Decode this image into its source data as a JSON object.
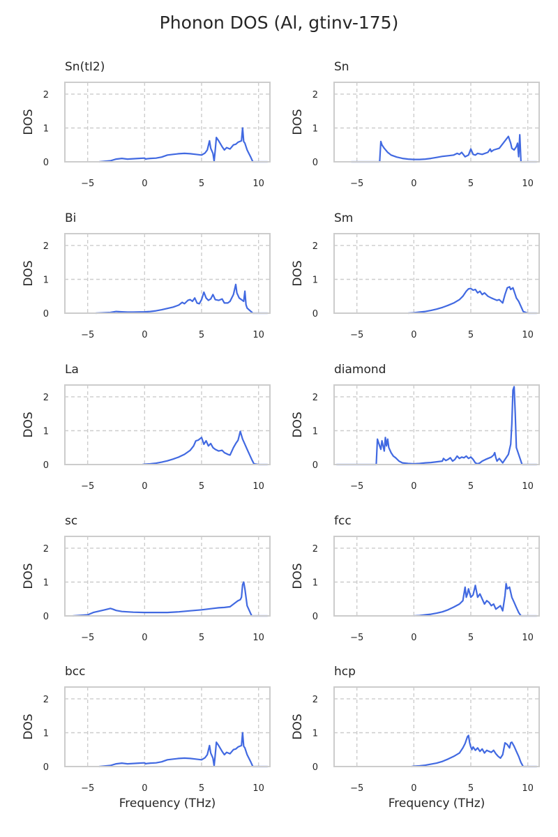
{
  "title": "Phonon DOS (Al, gtinv-175)",
  "series_color": "#4169e1",
  "chart_data": {
    "type": "line",
    "grid": true,
    "xlim": [
      -7,
      11
    ],
    "ylim": [
      0,
      2.35
    ],
    "xticks": [
      -5,
      0,
      5,
      10
    ],
    "yticks": [
      0,
      1,
      2
    ],
    "xlabel": "Frequency (THz)",
    "ylabel": "DOS",
    "panels": [
      {
        "title": "Sn(tI2)",
        "x": [
          -4.0,
          -3.0,
          -2.5,
          -2.0,
          -1.5,
          -1.0,
          -0.5,
          0.0,
          0.1,
          0.2,
          0.5,
          1.0,
          1.5,
          2.0,
          2.5,
          3.0,
          3.5,
          4.0,
          4.5,
          5.0,
          5.3,
          5.5,
          5.7,
          5.8,
          6.0,
          6.1,
          6.2,
          6.3,
          6.5,
          6.8,
          7.0,
          7.2,
          7.5,
          7.8,
          8.0,
          8.2,
          8.5,
          8.6,
          8.7,
          8.8,
          9.0,
          9.3,
          9.5,
          10.0,
          10.8
        ],
        "y": [
          0.0,
          0.03,
          0.08,
          0.1,
          0.08,
          0.09,
          0.1,
          0.11,
          0.08,
          0.09,
          0.1,
          0.11,
          0.14,
          0.2,
          0.22,
          0.24,
          0.25,
          0.24,
          0.22,
          0.2,
          0.26,
          0.35,
          0.62,
          0.4,
          0.25,
          0.02,
          0.35,
          0.72,
          0.62,
          0.45,
          0.35,
          0.42,
          0.38,
          0.5,
          0.52,
          0.58,
          0.62,
          1.0,
          0.6,
          0.55,
          0.35,
          0.15,
          0.0,
          0.0,
          0.0
        ]
      },
      {
        "title": "Sn",
        "x": [
          -5.5,
          -3.0,
          -2.9,
          -2.8,
          -2.6,
          -2.3,
          -2.0,
          -1.5,
          -1.0,
          -0.5,
          0.0,
          0.5,
          1.0,
          1.5,
          2.0,
          2.5,
          3.0,
          3.5,
          3.8,
          4.0,
          4.2,
          4.5,
          4.8,
          5.0,
          5.2,
          5.4,
          5.6,
          6.0,
          6.5,
          6.7,
          6.8,
          7.0,
          7.5,
          8.0,
          8.3,
          8.5,
          8.6,
          8.8,
          9.0,
          9.1,
          9.2,
          9.3,
          9.4,
          10.0,
          10.8
        ],
        "y": [
          0.0,
          0.0,
          0.6,
          0.5,
          0.4,
          0.28,
          0.2,
          0.14,
          0.1,
          0.08,
          0.07,
          0.07,
          0.08,
          0.1,
          0.13,
          0.16,
          0.18,
          0.2,
          0.25,
          0.22,
          0.28,
          0.15,
          0.2,
          0.38,
          0.22,
          0.2,
          0.25,
          0.22,
          0.28,
          0.38,
          0.3,
          0.35,
          0.4,
          0.62,
          0.75,
          0.55,
          0.4,
          0.35,
          0.45,
          0.55,
          0.15,
          0.8,
          0.0,
          0.0,
          0.0
        ]
      },
      {
        "title": "Bi",
        "x": [
          -4.3,
          -3.0,
          -2.5,
          -2.0,
          -1.5,
          -1.0,
          0.0,
          0.5,
          1.0,
          1.5,
          2.0,
          2.5,
          3.0,
          3.3,
          3.5,
          3.8,
          4.0,
          4.2,
          4.4,
          4.6,
          4.8,
          5.0,
          5.2,
          5.4,
          5.6,
          5.8,
          6.0,
          6.2,
          6.5,
          6.8,
          7.0,
          7.3,
          7.5,
          7.8,
          8.0,
          8.1,
          8.3,
          8.5,
          8.7,
          8.8,
          8.9,
          9.0,
          9.5,
          10.0,
          10.8
        ],
        "y": [
          0.0,
          0.02,
          0.05,
          0.04,
          0.03,
          0.03,
          0.04,
          0.05,
          0.07,
          0.1,
          0.14,
          0.18,
          0.24,
          0.32,
          0.28,
          0.38,
          0.4,
          0.35,
          0.45,
          0.3,
          0.28,
          0.4,
          0.62,
          0.45,
          0.38,
          0.42,
          0.55,
          0.4,
          0.38,
          0.42,
          0.3,
          0.3,
          0.35,
          0.55,
          0.85,
          0.6,
          0.45,
          0.4,
          0.35,
          0.65,
          0.25,
          0.15,
          0.0,
          0.0,
          0.0
        ]
      },
      {
        "title": "Sm",
        "x": [
          -0.5,
          0.0,
          0.5,
          1.0,
          1.5,
          2.0,
          2.5,
          3.0,
          3.5,
          4.0,
          4.3,
          4.6,
          4.8,
          5.0,
          5.2,
          5.4,
          5.6,
          5.8,
          6.0,
          6.2,
          6.5,
          6.8,
          7.0,
          7.3,
          7.5,
          7.8,
          8.0,
          8.2,
          8.4,
          8.5,
          8.7,
          8.9,
          9.0,
          9.2,
          9.4,
          9.6,
          10.0,
          10.8
        ],
        "y": [
          0.0,
          0.01,
          0.03,
          0.05,
          0.08,
          0.12,
          0.17,
          0.23,
          0.3,
          0.4,
          0.5,
          0.65,
          0.72,
          0.73,
          0.68,
          0.7,
          0.6,
          0.65,
          0.55,
          0.6,
          0.5,
          0.45,
          0.42,
          0.38,
          0.4,
          0.3,
          0.55,
          0.75,
          0.78,
          0.7,
          0.75,
          0.55,
          0.45,
          0.35,
          0.2,
          0.05,
          0.0,
          0.0
        ]
      },
      {
        "title": "La",
        "x": [
          -0.2,
          0.0,
          0.5,
          1.0,
          1.5,
          2.0,
          2.5,
          3.0,
          3.5,
          4.0,
          4.3,
          4.5,
          4.7,
          5.0,
          5.2,
          5.4,
          5.6,
          5.8,
          6.0,
          6.2,
          6.5,
          6.8,
          7.0,
          7.3,
          7.5,
          7.8,
          8.0,
          8.2,
          8.4,
          8.6,
          8.8,
          9.0,
          9.2,
          9.4,
          9.6,
          10.0,
          10.8
        ],
        "y": [
          0.0,
          0.01,
          0.02,
          0.04,
          0.07,
          0.11,
          0.16,
          0.22,
          0.3,
          0.42,
          0.55,
          0.7,
          0.72,
          0.8,
          0.6,
          0.7,
          0.55,
          0.62,
          0.5,
          0.45,
          0.4,
          0.42,
          0.35,
          0.3,
          0.28,
          0.5,
          0.62,
          0.72,
          0.98,
          0.75,
          0.6,
          0.45,
          0.3,
          0.15,
          0.02,
          0.0,
          0.0
        ]
      },
      {
        "title": "diamond",
        "x": [
          -6.8,
          -3.3,
          -3.2,
          -3.0,
          -2.9,
          -2.8,
          -2.6,
          -2.5,
          -2.4,
          -2.3,
          -2.2,
          -2.0,
          -1.8,
          -1.6,
          -1.3,
          -1.0,
          -0.5,
          0.0,
          0.5,
          1.0,
          1.5,
          2.0,
          2.5,
          2.6,
          2.8,
          3.0,
          3.2,
          3.4,
          3.6,
          3.8,
          4.0,
          4.2,
          4.4,
          4.6,
          4.8,
          5.0,
          5.2,
          5.4,
          5.6,
          5.8,
          6.0,
          6.3,
          6.5,
          6.8,
          7.0,
          7.1,
          7.2,
          7.3,
          7.5,
          7.8,
          8.0,
          8.3,
          8.5,
          8.6,
          8.7,
          8.8,
          8.9,
          9.0,
          9.5,
          10.0,
          10.8
        ],
        "y": [
          0.0,
          0.0,
          0.75,
          0.55,
          0.45,
          0.7,
          0.4,
          0.8,
          0.55,
          0.75,
          0.5,
          0.35,
          0.25,
          0.2,
          0.1,
          0.05,
          0.03,
          0.02,
          0.03,
          0.05,
          0.06,
          0.08,
          0.1,
          0.18,
          0.12,
          0.15,
          0.2,
          0.1,
          0.15,
          0.25,
          0.18,
          0.22,
          0.2,
          0.25,
          0.18,
          0.22,
          0.15,
          0.05,
          0.02,
          0.05,
          0.1,
          0.15,
          0.18,
          0.22,
          0.28,
          0.35,
          0.2,
          0.1,
          0.18,
          0.05,
          0.15,
          0.3,
          0.6,
          1.2,
          2.2,
          2.3,
          1.5,
          0.5,
          0.0,
          0.0,
          0.0
        ]
      },
      {
        "title": "sc",
        "x": [
          -6.3,
          -5.0,
          -4.5,
          -4.0,
          -3.5,
          -3.0,
          -2.8,
          -2.5,
          -2.0,
          -1.5,
          -1.0,
          0.0,
          1.0,
          2.0,
          3.0,
          4.0,
          5.0,
          5.5,
          6.0,
          6.5,
          7.0,
          7.5,
          8.0,
          8.2,
          8.4,
          8.5,
          8.6,
          8.7,
          8.8,
          8.9,
          9.0,
          9.2,
          9.4,
          10.0,
          10.8
        ],
        "y": [
          0.0,
          0.03,
          0.1,
          0.14,
          0.18,
          0.22,
          0.2,
          0.16,
          0.13,
          0.12,
          0.11,
          0.1,
          0.1,
          0.1,
          0.12,
          0.15,
          0.18,
          0.2,
          0.22,
          0.24,
          0.25,
          0.27,
          0.4,
          0.45,
          0.48,
          0.55,
          0.92,
          1.0,
          0.8,
          0.55,
          0.3,
          0.15,
          0.0,
          0.0,
          0.0
        ]
      },
      {
        "title": "fcc",
        "x": [
          0.0,
          0.5,
          1.0,
          1.5,
          2.0,
          2.5,
          3.0,
          3.5,
          4.0,
          4.3,
          4.5,
          4.6,
          4.7,
          4.8,
          5.0,
          5.2,
          5.4,
          5.6,
          5.8,
          6.0,
          6.2,
          6.4,
          6.6,
          6.8,
          7.0,
          7.2,
          7.4,
          7.6,
          7.8,
          8.0,
          8.1,
          8.2,
          8.4,
          8.6,
          8.8,
          9.0,
          9.2,
          9.4,
          10.0,
          10.8
        ],
        "y": [
          0.0,
          0.01,
          0.03,
          0.05,
          0.08,
          0.12,
          0.18,
          0.26,
          0.35,
          0.45,
          0.85,
          0.55,
          0.65,
          0.8,
          0.55,
          0.62,
          0.9,
          0.55,
          0.65,
          0.5,
          0.35,
          0.45,
          0.4,
          0.3,
          0.35,
          0.2,
          0.25,
          0.3,
          0.15,
          0.6,
          0.95,
          0.8,
          0.85,
          0.55,
          0.4,
          0.25,
          0.1,
          0.0,
          0.0,
          0.0
        ]
      },
      {
        "title": "bcc",
        "x": [
          -4.0,
          -3.0,
          -2.5,
          -2.0,
          -1.5,
          -1.0,
          -0.5,
          0.0,
          0.1,
          0.2,
          0.5,
          1.0,
          1.5,
          2.0,
          2.5,
          3.0,
          3.5,
          4.0,
          4.5,
          5.0,
          5.3,
          5.5,
          5.7,
          5.8,
          6.0,
          6.1,
          6.2,
          6.3,
          6.5,
          6.8,
          7.0,
          7.2,
          7.5,
          7.8,
          8.0,
          8.2,
          8.5,
          8.6,
          8.7,
          8.8,
          9.0,
          9.3,
          9.5,
          10.0,
          10.8
        ],
        "y": [
          0.0,
          0.03,
          0.08,
          0.1,
          0.08,
          0.09,
          0.1,
          0.11,
          0.08,
          0.09,
          0.1,
          0.11,
          0.14,
          0.2,
          0.22,
          0.24,
          0.25,
          0.24,
          0.22,
          0.2,
          0.26,
          0.35,
          0.62,
          0.4,
          0.25,
          0.02,
          0.35,
          0.72,
          0.62,
          0.45,
          0.35,
          0.42,
          0.38,
          0.5,
          0.52,
          0.58,
          0.62,
          1.0,
          0.6,
          0.55,
          0.35,
          0.15,
          0.0,
          0.0,
          0.0
        ]
      },
      {
        "title": "hcp",
        "x": [
          -0.2,
          0.0,
          0.5,
          1.0,
          1.5,
          2.0,
          2.5,
          3.0,
          3.5,
          4.0,
          4.3,
          4.5,
          4.7,
          4.8,
          4.9,
          5.0,
          5.1,
          5.2,
          5.4,
          5.6,
          5.8,
          6.0,
          6.2,
          6.4,
          6.6,
          6.8,
          7.0,
          7.2,
          7.4,
          7.6,
          7.8,
          8.0,
          8.2,
          8.4,
          8.5,
          8.6,
          8.8,
          9.0,
          9.2,
          9.4,
          9.6,
          10.0,
          10.8
        ],
        "y": [
          0.0,
          0.01,
          0.02,
          0.04,
          0.07,
          0.1,
          0.15,
          0.22,
          0.3,
          0.4,
          0.55,
          0.68,
          0.88,
          0.92,
          0.7,
          0.58,
          0.5,
          0.58,
          0.48,
          0.55,
          0.45,
          0.52,
          0.4,
          0.48,
          0.45,
          0.42,
          0.48,
          0.38,
          0.3,
          0.25,
          0.35,
          0.7,
          0.65,
          0.55,
          0.7,
          0.72,
          0.6,
          0.45,
          0.3,
          0.12,
          0.0,
          0.0,
          0.0
        ]
      }
    ]
  }
}
